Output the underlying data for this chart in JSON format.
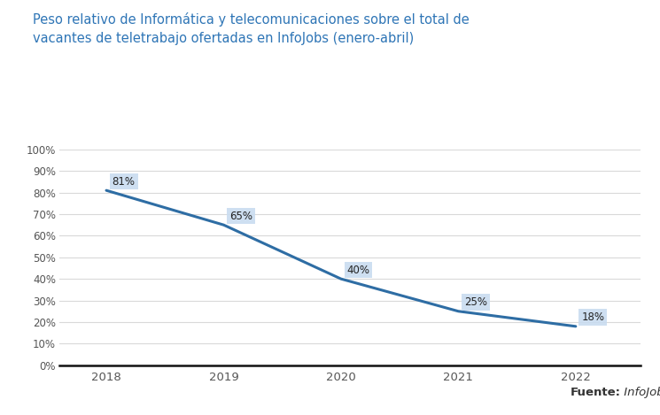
{
  "title_line1": "Peso relativo de Informática y telecomunicaciones sobre el total de",
  "title_line2": "vacantes de teletrabajo ofertadas en InfoJobs (enero-abril)",
  "years": [
    2018,
    2019,
    2020,
    2021,
    2022
  ],
  "values": [
    81,
    65,
    40,
    25,
    18
  ],
  "labels": [
    "81%",
    "65%",
    "40%",
    "25%",
    "18%"
  ],
  "line_color": "#2E6DA4",
  "label_bg_color": "#C9DCF0",
  "title_color": "#2E75B6",
  "yticks": [
    0,
    10,
    20,
    30,
    40,
    50,
    60,
    70,
    80,
    90,
    100
  ],
  "ytick_labels": [
    "0%",
    "10%",
    "20%",
    "30%",
    "40%",
    "50%",
    "60%",
    "70%",
    "80%",
    "90%",
    "100%"
  ],
  "background_color": "#FFFFFF",
  "grid_color": "#D9D9D9",
  "source_bold": "Fuente:",
  "source_italic": " InfoJobs",
  "source_color": "#333333"
}
